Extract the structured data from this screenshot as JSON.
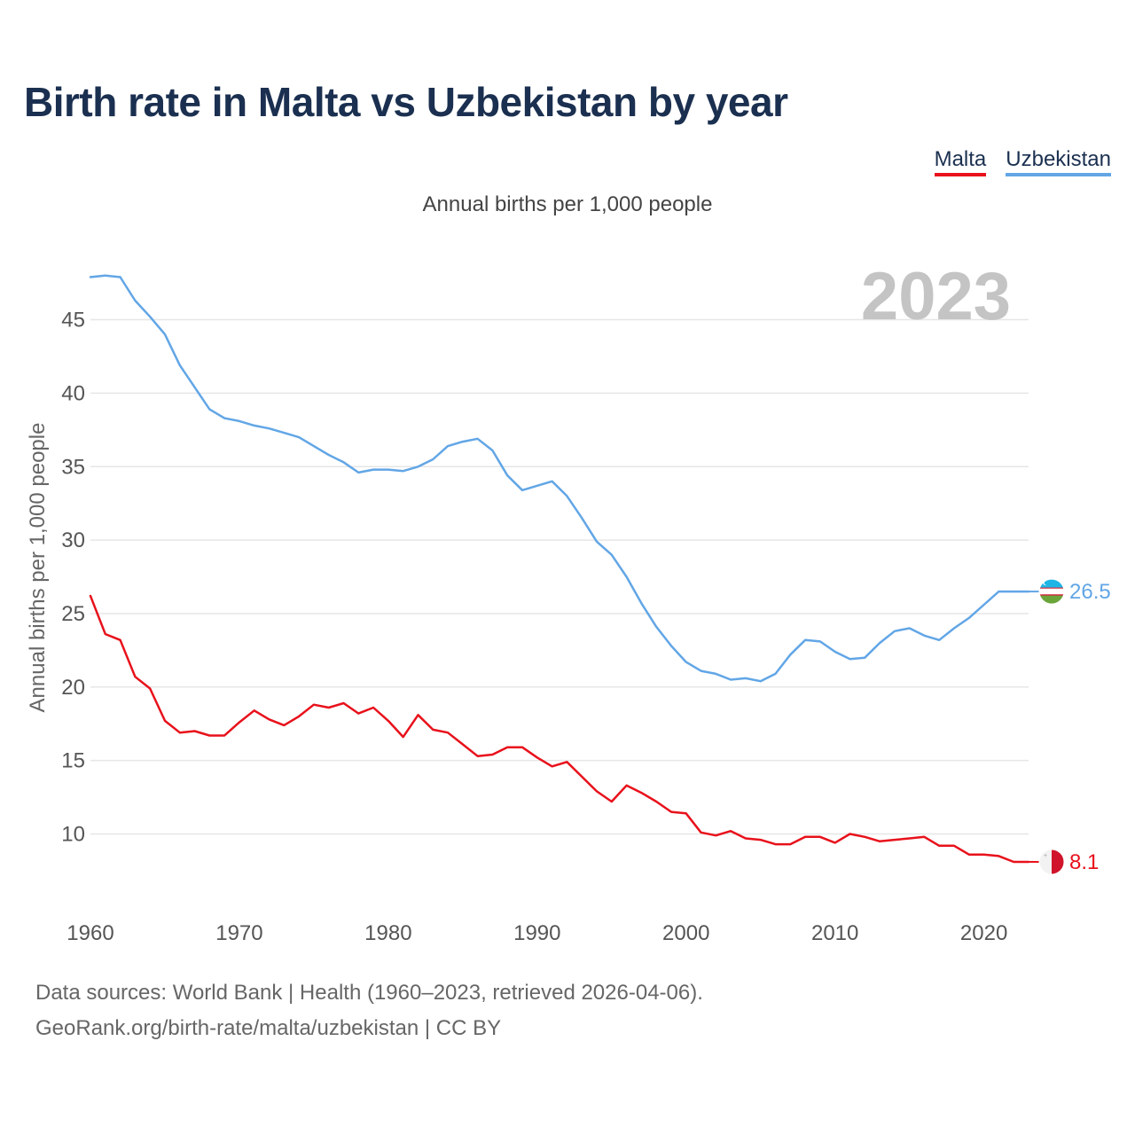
{
  "title": "Birth rate in Malta vs Uzbekistan by year",
  "legend": [
    {
      "label": "Malta",
      "color": "#e8111b"
    },
    {
      "label": "Uzbekistan",
      "color": "#62a6e6"
    }
  ],
  "subtitle": "Annual births per 1,000 people",
  "footer": {
    "line1": "Data sources: World Bank | Health (1960–2023, retrieved 2026-04-06).",
    "line2": "GeoRank.org/birth-rate/malta/uzbekistan | CC BY"
  },
  "chart_data": {
    "type": "line",
    "year_watermark": "2023",
    "ylabel": "Annual births per 1,000 people",
    "xlabel": "",
    "x_range": [
      1960,
      2023
    ],
    "ylim": [
      5.5,
      49
    ],
    "x_ticks": [
      1960,
      1970,
      1980,
      1990,
      2000,
      2010,
      2020
    ],
    "y_ticks": [
      10,
      15,
      20,
      25,
      30,
      35,
      40,
      45
    ],
    "grid": true,
    "series": [
      {
        "name": "Malta",
        "color": "#e8111b",
        "end_label": "8.1",
        "flag": "malta-flag",
        "values": [
          26.2,
          23.6,
          23.2,
          20.7,
          19.9,
          17.7,
          16.9,
          17.0,
          16.7,
          16.7,
          17.6,
          18.4,
          17.8,
          17.4,
          18.0,
          18.8,
          18.6,
          18.9,
          18.2,
          18.6,
          17.7,
          16.6,
          18.1,
          17.1,
          16.9,
          16.1,
          15.3,
          15.4,
          15.9,
          15.9,
          15.2,
          14.6,
          14.9,
          13.9,
          12.9,
          12.2,
          13.3,
          12.8,
          12.2,
          11.5,
          11.4,
          10.1,
          9.9,
          10.2,
          9.7,
          9.6,
          9.3,
          9.3,
          9.8,
          9.8,
          9.4,
          10.0,
          9.8,
          9.5,
          9.6,
          9.7,
          9.8,
          9.2,
          9.2,
          8.6,
          8.6,
          8.5,
          8.1,
          8.1
        ]
      },
      {
        "name": "Uzbekistan",
        "color": "#62a6e6",
        "end_label": "26.5",
        "flag": "uzbekistan-flag",
        "values": [
          47.9,
          48.0,
          47.9,
          46.3,
          45.2,
          44.0,
          41.9,
          40.4,
          38.9,
          38.3,
          38.1,
          37.8,
          37.6,
          37.3,
          37.0,
          36.4,
          35.8,
          35.3,
          34.6,
          34.8,
          34.8,
          34.7,
          35.0,
          35.5,
          36.4,
          36.7,
          36.9,
          36.1,
          34.4,
          33.4,
          33.7,
          34.0,
          33.0,
          31.5,
          29.9,
          29.0,
          27.5,
          25.7,
          24.1,
          22.8,
          21.7,
          21.1,
          20.9,
          20.5,
          20.6,
          20.4,
          20.9,
          22.2,
          23.2,
          23.1,
          22.4,
          21.9,
          22.0,
          23.0,
          23.8,
          24.0,
          23.5,
          23.2,
          24.0,
          24.7,
          25.6,
          26.5,
          26.5,
          26.5
        ]
      }
    ]
  }
}
